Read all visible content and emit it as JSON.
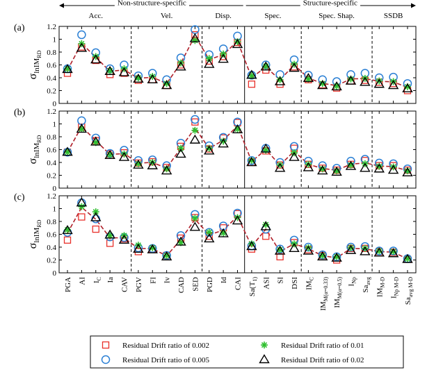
{
  "chart_data": {
    "type": "scatter",
    "groups": [
      {
        "label": "Non-structure-specific"
      },
      {
        "label": "Structure-specific"
      }
    ],
    "categories": [
      {
        "label": "Acc."
      },
      {
        "label": "Vel."
      },
      {
        "label": "Disp."
      },
      {
        "label": "Spec."
      },
      {
        "label": "Spec. Shap."
      },
      {
        "label": "SSDB"
      }
    ],
    "x_labels": [
      "PGA",
      "AI",
      "I_C",
      "Ia",
      "CAV",
      "PGV",
      "FI",
      "Iv",
      "CAD",
      "SED",
      "PGD",
      "Id",
      "CAI",
      "Sa(T_1)",
      "ASI",
      "SI",
      "DSI",
      "IM_C",
      "IM_M(α=0.33)",
      "IM_M(α=0.5)",
      "I_Np",
      "Sa_avg",
      "IM_M-D",
      "I_Np M-D",
      "Sa_avg M-D"
    ],
    "ylabel": "σ_lnIM_RD",
    "ylim": [
      0,
      1.2
    ],
    "yticks": [
      "0",
      "0.2",
      "0.4",
      "0.6",
      "0.8",
      "1",
      "1.2"
    ],
    "legend": {
      "placement": "bottom",
      "entries": [
        {
          "label": "Residual Drift ratio of 0.002",
          "marker": "square",
          "color": "#e8302a"
        },
        {
          "label": "Residual Drift ratio of 0.01",
          "marker": "asterisk",
          "color": "#2fbf2f"
        },
        {
          "label": "Residual Drift ratio of 0.005",
          "marker": "circle",
          "color": "#2a7fd4"
        },
        {
          "label": "Residual Drift ratio of 0.02",
          "marker": "triangle",
          "color": "#000000"
        }
      ]
    },
    "panels": [
      {
        "label": "(a)",
        "series": [
          {
            "values": [
              0.47,
              0.88,
              0.67,
              0.45,
              0.47,
              0.36,
              0.37,
              0.28,
              0.6,
              1.07,
              0.66,
              0.73,
              0.95,
              0.3,
              0.52,
              0.3,
              0.57,
              0.37,
              0.29,
              0.24,
              0.35,
              0.36,
              0.33,
              0.31,
              0.2
            ]
          },
          {
            "values": [
              0.54,
              0.93,
              0.73,
              0.51,
              0.54,
              0.4,
              0.42,
              0.31,
              0.63,
              0.98,
              0.7,
              0.77,
              0.96,
              0.43,
              0.58,
              0.37,
              0.61,
              0.38,
              0.31,
              0.27,
              0.38,
              0.39,
              0.35,
              0.34,
              0.26
            ]
          },
          {
            "values": [
              0.54,
              1.07,
              0.79,
              0.54,
              0.6,
              0.43,
              0.47,
              0.37,
              0.71,
              1.15,
              0.76,
              0.85,
              1.05,
              0.44,
              0.6,
              0.45,
              0.68,
              0.44,
              0.37,
              0.34,
              0.45,
              0.47,
              0.4,
              0.41,
              0.31
            ]
          },
          {
            "values": [
              0.53,
              0.86,
              0.68,
              0.5,
              0.48,
              0.38,
              0.37,
              0.28,
              0.57,
              1.01,
              0.61,
              0.69,
              0.92,
              0.44,
              0.57,
              0.34,
              0.55,
              0.39,
              0.28,
              0.26,
              0.35,
              0.33,
              0.3,
              0.28,
              0.23
            ]
          }
        ]
      },
      {
        "label": "(b)",
        "series": [
          {
            "values": [
              0.56,
              0.95,
              0.74,
              0.53,
              0.55,
              0.39,
              0.41,
              0.32,
              0.65,
              1.03,
              0.61,
              0.78,
              1.02,
              0.4,
              0.58,
              0.36,
              0.62,
              0.37,
              0.31,
              0.28,
              0.37,
              0.43,
              0.35,
              0.35,
              0.28
            ]
          },
          {
            "values": [
              0.56,
              0.92,
              0.71,
              0.52,
              0.53,
              0.38,
              0.4,
              0.3,
              0.62,
              0.9,
              0.62,
              0.73,
              0.92,
              0.43,
              0.59,
              0.36,
              0.55,
              0.37,
              0.3,
              0.27,
              0.36,
              0.38,
              0.34,
              0.33,
              0.27
            ]
          },
          {
            "values": [
              0.56,
              1.05,
              0.78,
              0.54,
              0.59,
              0.43,
              0.44,
              0.35,
              0.7,
              1.07,
              0.66,
              0.79,
              1.03,
              0.43,
              0.62,
              0.4,
              0.65,
              0.42,
              0.35,
              0.31,
              0.42,
              0.45,
              0.39,
              0.38,
              0.3
            ]
          },
          {
            "values": [
              0.56,
              0.92,
              0.72,
              0.51,
              0.48,
              0.36,
              0.35,
              0.27,
              0.53,
              0.75,
              0.58,
              0.69,
              0.91,
              0.4,
              0.61,
              0.31,
              0.48,
              0.32,
              0.27,
              0.25,
              0.34,
              0.31,
              0.3,
              0.28,
              0.24
            ]
          }
        ]
      },
      {
        "label": "(c)",
        "series": [
          {
            "values": [
              0.51,
              0.87,
              0.68,
              0.46,
              0.53,
              0.33,
              0.37,
              0.27,
              0.54,
              0.86,
              0.57,
              0.7,
              0.92,
              0.37,
              0.57,
              0.25,
              0.47,
              0.36,
              0.27,
              0.2,
              0.38,
              0.38,
              0.33,
              0.32,
              0.21
            ]
          },
          {
            "values": [
              0.67,
              1.03,
              0.95,
              0.58,
              0.58,
              0.43,
              0.39,
              0.27,
              0.47,
              0.85,
              0.63,
              0.62,
              0.86,
              0.45,
              0.75,
              0.36,
              0.45,
              0.39,
              0.27,
              0.25,
              0.39,
              0.38,
              0.34,
              0.33,
              0.22
            ]
          },
          {
            "values": [
              0.63,
              1.09,
              0.84,
              0.56,
              0.55,
              0.39,
              0.38,
              0.27,
              0.58,
              0.91,
              0.63,
              0.73,
              0.93,
              0.42,
              0.68,
              0.37,
              0.51,
              0.4,
              0.28,
              0.25,
              0.4,
              0.41,
              0.34,
              0.34,
              0.22
            ]
          },
          {
            "values": [
              0.66,
              1.09,
              0.86,
              0.59,
              0.51,
              0.37,
              0.36,
              0.25,
              0.48,
              0.71,
              0.53,
              0.61,
              0.81,
              0.41,
              0.72,
              0.34,
              0.38,
              0.34,
              0.25,
              0.23,
              0.35,
              0.33,
              0.31,
              0.3,
              0.21
            ]
          }
        ]
      }
    ]
  }
}
